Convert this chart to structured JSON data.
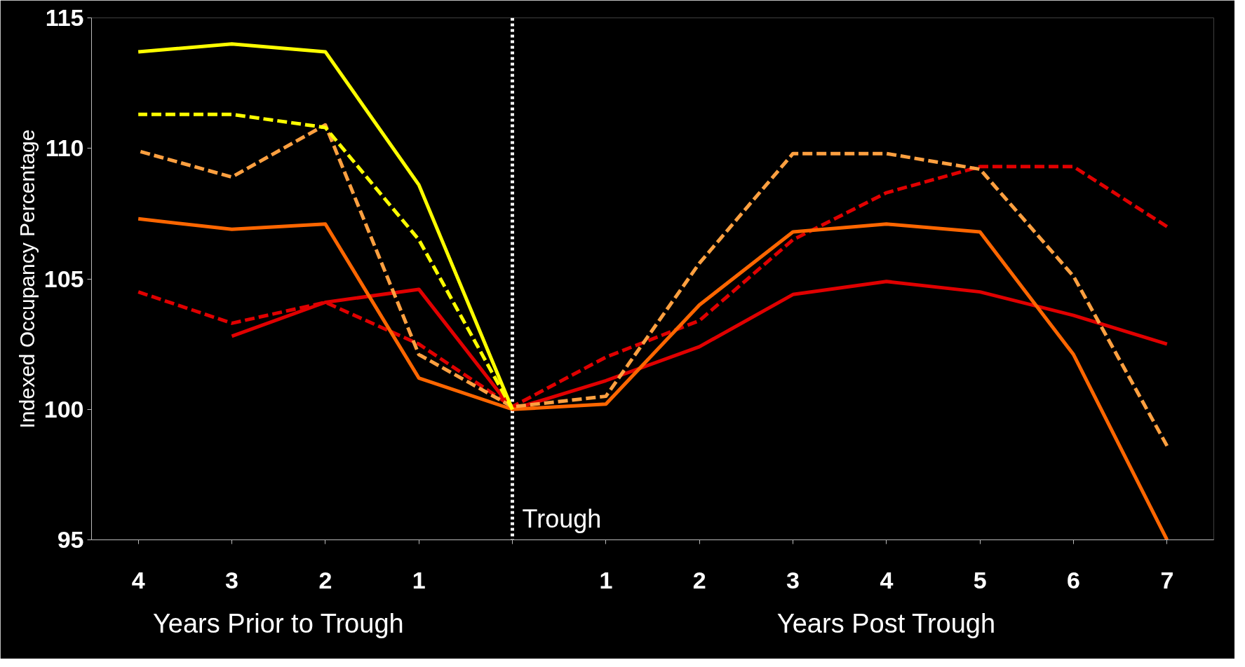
{
  "chart_data": {
    "type": "line",
    "ylabel": "Indexed Occupancy Percentage",
    "annotations": [
      "Years Prior to Trough",
      "Years Post Trough"
    ],
    "x": [
      -4,
      -3,
      -2,
      -1,
      0,
      1,
      2,
      3,
      4,
      5,
      6,
      7
    ],
    "xlim": [
      -4.5,
      7.5
    ],
    "xticks": [
      {
        "value": -4,
        "label": "4"
      },
      {
        "value": -3,
        "label": "3"
      },
      {
        "value": -2,
        "label": "2"
      },
      {
        "value": -1,
        "label": "1"
      },
      {
        "value": 0,
        "label": null
      },
      {
        "value": 1,
        "label": "1"
      },
      {
        "value": 2,
        "label": "2"
      },
      {
        "value": 3,
        "label": "3"
      },
      {
        "value": 4,
        "label": "4"
      },
      {
        "value": 5,
        "label": "5"
      },
      {
        "value": 6,
        "label": "6"
      },
      {
        "value": 7,
        "label": "7"
      }
    ],
    "ylim": [
      95,
      115
    ],
    "yticks": [
      95,
      100,
      105,
      110,
      115
    ],
    "grid": false,
    "ref_lines": [
      {
        "axis": "x",
        "value": 0,
        "label": "Trough",
        "color": "#ffffff",
        "line_style": "dotted"
      }
    ],
    "series": [
      {
        "color": "#ffff00",
        "line_style": "solid",
        "values": [
          113.7,
          114.0,
          113.7,
          108.6,
          100.0,
          null,
          null,
          null,
          null,
          null,
          null,
          null
        ]
      },
      {
        "color": "#ffff00",
        "line_style": "dashed",
        "values": [
          111.3,
          111.3,
          110.8,
          106.5,
          100.0,
          null,
          null,
          null,
          null,
          null,
          null,
          null
        ]
      },
      {
        "color": "#ffa040",
        "line_style": "dashed",
        "values": [
          109.9,
          108.9,
          110.9,
          102.1,
          100.1,
          100.5,
          105.6,
          109.8,
          109.8,
          109.2,
          105.1,
          98.6
        ]
      },
      {
        "color": "#ff6600",
        "line_style": "solid",
        "values": [
          107.3,
          106.9,
          107.1,
          101.2,
          100.0,
          100.2,
          104.0,
          106.8,
          107.1,
          106.8,
          102.1,
          95.0
        ]
      },
      {
        "color": "#e00000",
        "line_style": "solid",
        "values": [
          null,
          102.8,
          104.1,
          104.6,
          100.0,
          101.1,
          102.4,
          104.4,
          104.9,
          104.5,
          103.6,
          102.5
        ]
      },
      {
        "color": "#e00000",
        "line_style": "dashed",
        "values": [
          104.5,
          103.3,
          104.1,
          102.5,
          100.1,
          102.0,
          103.4,
          106.5,
          108.3,
          109.3,
          109.3,
          107.0
        ]
      }
    ]
  }
}
